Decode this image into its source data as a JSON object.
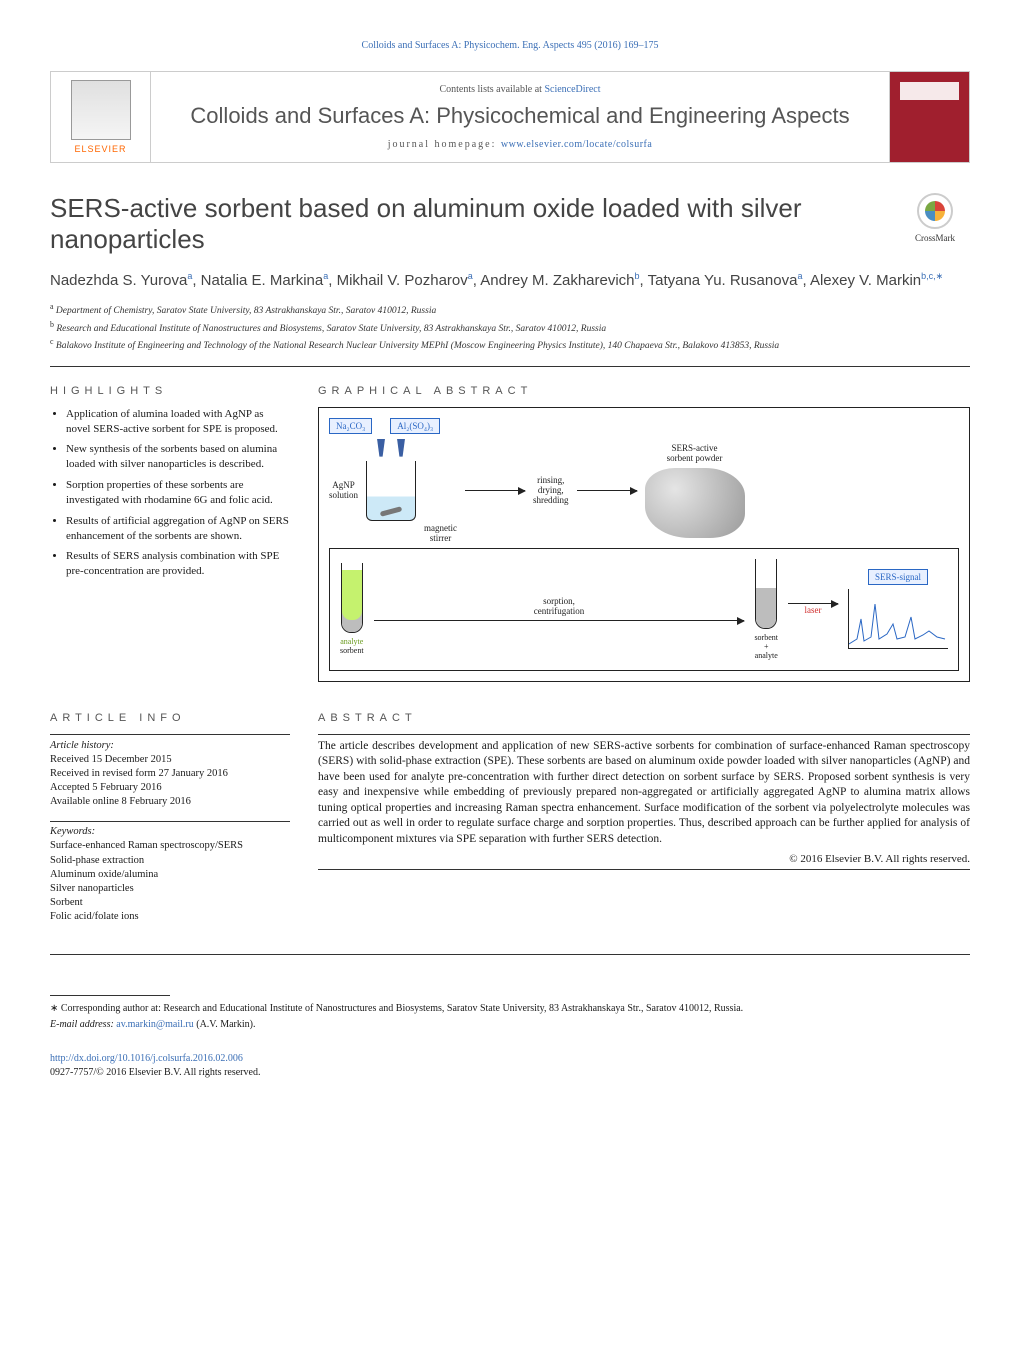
{
  "running_header": "Colloids and Surfaces A: Physicochem. Eng. Aspects 495 (2016) 169–175",
  "header": {
    "contents_prefix": "Contents lists available at ",
    "contents_link": "ScienceDirect",
    "journal_name": "Colloids and Surfaces A: Physicochemical and Engineering Aspects",
    "homepage_prefix": "journal homepage: ",
    "homepage_url": "www.elsevier.com/locate/colsurfa",
    "publisher_word": "ELSEVIER"
  },
  "crossmark_label": "CrossMark",
  "title": "SERS-active sorbent based on aluminum oxide loaded with silver nanoparticles",
  "authors_html": "Nadezhda S. Yurova<sup>a</sup>, Natalia E. Markina<sup>a</sup>, Mikhail V. Pozharov<sup>a</sup>, Andrey M. Zakharevich<sup>b</sup>, Tatyana Yu. Rusanova<sup>a</sup>, Alexey V. Markin<sup>b,c,∗</sup>",
  "affiliations": [
    {
      "sup": "a",
      "text": "Department of Chemistry, Saratov State University, 83 Astrakhanskaya Str., Saratov 410012, Russia"
    },
    {
      "sup": "b",
      "text": "Research and Educational Institute of Nanostructures and Biosystems, Saratov State University, 83 Astrakhanskaya Str., Saratov 410012, Russia"
    },
    {
      "sup": "c",
      "text": "Balakovo Institute of Engineering and Technology of the National Research Nuclear University MEPhI (Moscow Engineering Physics Institute), 140 Chapaeva Str., Balakovo 413853, Russia"
    }
  ],
  "sections": {
    "highlights": "HIGHLIGHTS",
    "graphical": "GRAPHICAL ABSTRACT",
    "article_info": "ARTICLE INFO",
    "abstract": "ABSTRACT"
  },
  "highlights": [
    "Application of alumina loaded with AgNP as novel SERS-active sorbent for SPE is proposed.",
    "New synthesis of the sorbents based on alumina loaded with silver nanoparticles is described.",
    "Sorption properties of these sorbents are investigated with rhodamine 6G and folic acid.",
    "Results of artificial aggregation of AgNP on SERS enhancement of the sorbents are shown.",
    "Results of SERS analysis combination with SPE pre-concentration are provided."
  ],
  "graphical_abstract": {
    "labels": {
      "naco3": "Na₂CO₃",
      "alsu": "Al₂(SO₄)₃",
      "agnp": "AgNP\nsolution",
      "magnetic": "magnetic\nstirrer",
      "rinse": "rinsing,\ndrying,\nshredding",
      "powder": "SERS-active\nsorbent powder",
      "sorption": "sorption,\ncentrifugation",
      "analyte": "analyte",
      "sorbent": "sorbent",
      "sorbent_analyte": "sorbent\n+\nanalyte",
      "laser": "laser",
      "sers_signal": "SERS-signal"
    },
    "colors": {
      "tag_border": "#2a67c4",
      "tag_bg": "#e8f0ff",
      "beaker_fill": "#cde9f7",
      "analyte_fill": "#c5f26e",
      "sorbent_fill": "#bdbdbd",
      "laser_stroke": "#d02e2e"
    }
  },
  "article_info": {
    "history_label": "Article history:",
    "received": "Received 15 December 2015",
    "revised": "Received in revised form 27 January 2016",
    "accepted": "Accepted 5 February 2016",
    "online": "Available online 8 February 2016",
    "keywords_label": "Keywords:",
    "keywords": [
      "Surface-enhanced Raman spectroscopy/SERS",
      "Solid-phase extraction",
      "Aluminum oxide/alumina",
      "Silver nanoparticles",
      "Sorbent",
      "Folic acid/folate ions"
    ]
  },
  "abstract_text": "The article describes development and application of new SERS-active sorbents for combination of surface-enhanced Raman spectroscopy (SERS) with solid-phase extraction (SPE). These sorbents are based on aluminum oxide powder loaded with silver nanoparticles (AgNP) and have been used for analyte pre-concentration with further direct detection on sorbent surface by SERS. Proposed sorbent synthesis is very easy and inexpensive while embedding of previously prepared non-aggregated or artificially aggregated AgNP to alumina matrix allows tuning optical properties and increasing Raman spectra enhancement. Surface modification of the sorbent via polyelectrolyte molecules was carried out as well in order to regulate surface charge and sorption properties. Thus, described approach can be further applied for analysis of multicomponent mixtures via SPE separation with further SERS detection.",
  "copyright": "© 2016 Elsevier B.V. All rights reserved.",
  "footnotes": {
    "corr": "∗ Corresponding author at: Research and Educational Institute of Nanostructures and Biosystems, Saratov State University, 83 Astrakhanskaya Str., Saratov 410012, Russia.",
    "email_label": "E-mail address: ",
    "email": "av.markin@mail.ru",
    "email_of": " (A.V. Markin)."
  },
  "doi": {
    "url": "http://dx.doi.org/10.1016/j.colsurfa.2016.02.006",
    "issn_line": "0927-7757/© 2016 Elsevier B.V. All rights reserved."
  }
}
